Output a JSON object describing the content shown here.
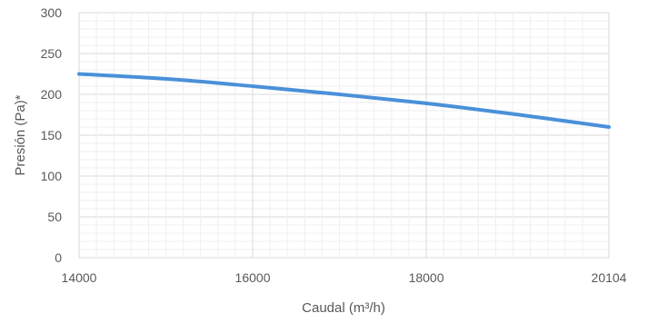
{
  "chart_data": {
    "type": "line",
    "xlabel": "Caudal (m³/h)",
    "ylabel": "Presión (Pa)*",
    "xlim": [
      14000,
      20104
    ],
    "ylim": [
      0,
      300
    ],
    "x_ticks": [
      "14000",
      "16000",
      "18000",
      "20104"
    ],
    "x_tick_values": [
      14000,
      16000,
      18000,
      20104
    ],
    "y_ticks": [
      "0",
      "50",
      "100",
      "150",
      "200",
      "250",
      "300"
    ],
    "y_tick_values": [
      0,
      50,
      100,
      150,
      200,
      250,
      300
    ],
    "grid": true,
    "series": [
      {
        "x": [
          14000,
          15000,
          16000,
          17000,
          18000,
          19000,
          20104
        ],
        "y": [
          225,
          219,
          210,
          200,
          189,
          176,
          160
        ]
      }
    ],
    "colors": {
      "line": "#4a90d9",
      "grid_major": "#d9d9d9",
      "grid_minor": "#efefef",
      "text": "#595959"
    }
  }
}
